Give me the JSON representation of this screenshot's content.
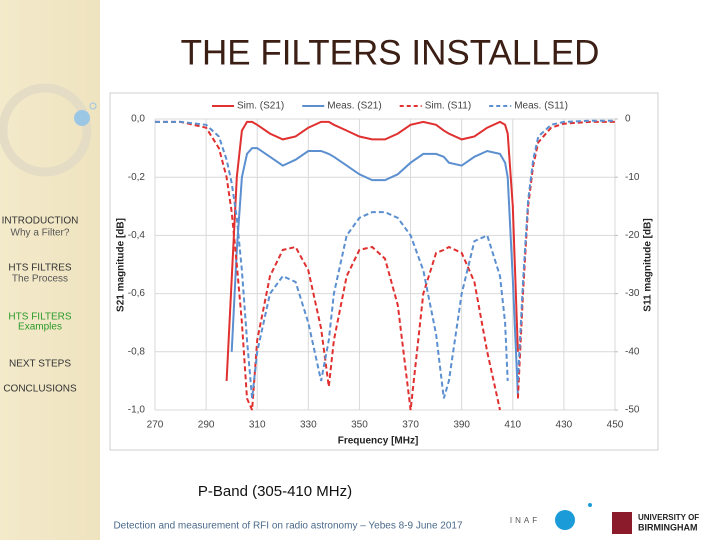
{
  "slide": {
    "title": "THE FILTERS INSTALLED",
    "nav": [
      {
        "title": "INTRODUCTION",
        "subtitle": "Why a Filter?"
      },
      {
        "title": "HTS FILTRES",
        "subtitle": "The Process"
      },
      {
        "title": "HTS FILTERS",
        "subtitle": "Examples"
      },
      {
        "title": "NEXT STEPS"
      },
      {
        "title": "CONCLUSIONS"
      }
    ],
    "caption": "P-Band (305-410 MHz)",
    "footer": "Detection and measurement of RFI on radio astronomy – Yebes 8-9 June 2017",
    "logo_left": "INAF",
    "logo_right": [
      "UNIVERSITY OF",
      "BIRMINGHAM"
    ]
  },
  "chart_data": {
    "type": "line",
    "x_label": "Frequency [MHz]",
    "y_label": "S21 magnitude [dB]",
    "y2_label": "S11 magnitude [dB]",
    "legend": "top",
    "grid": true,
    "x": [
      270,
      280,
      290,
      295,
      298,
      300,
      302,
      304,
      306,
      308,
      310,
      315,
      320,
      325,
      330,
      335,
      338,
      340,
      345,
      350,
      355,
      360,
      365,
      370,
      375,
      380,
      383,
      385,
      390,
      395,
      400,
      405,
      407,
      408,
      410,
      412,
      414,
      416,
      418,
      420,
      425,
      430,
      440,
      450
    ],
    "series": [
      {
        "name": "Sim. (S21)",
        "color": "#e03030",
        "linestyle": "solid",
        "values": [
          null,
          null,
          null,
          null,
          -0.9,
          -0.55,
          -0.2,
          -0.04,
          -0.01,
          -0.01,
          -0.02,
          -0.05,
          -0.07,
          -0.06,
          -0.03,
          -0.01,
          -0.01,
          -0.02,
          -0.04,
          -0.06,
          -0.07,
          -0.07,
          -0.05,
          -0.02,
          -0.01,
          -0.02,
          -0.04,
          -0.05,
          -0.07,
          -0.06,
          -0.03,
          -0.01,
          -0.02,
          -0.05,
          -0.3,
          -0.8,
          null,
          null,
          null,
          null,
          null,
          null,
          null,
          null
        ]
      },
      {
        "name": "Meas. (S21)",
        "color": "#5b8fd0",
        "linestyle": "solid",
        "values": [
          null,
          null,
          null,
          null,
          null,
          -0.8,
          -0.45,
          -0.2,
          -0.12,
          -0.1,
          -0.1,
          -0.13,
          -0.16,
          -0.14,
          -0.11,
          -0.11,
          -0.12,
          -0.13,
          -0.16,
          -0.19,
          -0.21,
          -0.21,
          -0.19,
          -0.15,
          -0.12,
          -0.12,
          -0.13,
          -0.15,
          -0.16,
          -0.13,
          -0.11,
          -0.12,
          -0.15,
          -0.2,
          -0.55,
          -0.95,
          null,
          null,
          null,
          null,
          null,
          null,
          null,
          null
        ]
      },
      {
        "name": "Sim. (S11)",
        "color": "#e03030",
        "linestyle": "dashed",
        "axis": "y2",
        "values": [
          -0.5,
          -0.5,
          -1.5,
          -5,
          -10,
          -16,
          -25,
          -35,
          -48,
          -50,
          -38,
          -27,
          -22.5,
          -22,
          -26,
          -36,
          -46,
          -38,
          -27,
          -22.5,
          -22,
          -24,
          -32,
          -50,
          -30,
          -23,
          -22.5,
          -22,
          -23,
          -28,
          -40,
          -50,
          null,
          null,
          null,
          -48,
          -30,
          -15,
          -8,
          -4,
          -1.5,
          -0.8,
          -0.5,
          -0.5
        ]
      },
      {
        "name": "Meas. (S11)",
        "color": "#5b8fd0",
        "linestyle": "dashed",
        "axis": "y2",
        "values": [
          -0.5,
          -0.5,
          -1,
          -3,
          -7,
          -11,
          -17,
          -26,
          -38,
          -48,
          -40,
          -30,
          -27,
          -28,
          -35,
          -45,
          -38,
          -30,
          -20,
          -17,
          -16,
          -16,
          -17,
          -20,
          -26,
          -37,
          -48,
          -45,
          -30,
          -21,
          -20,
          -27,
          -35,
          -45,
          null,
          -45,
          -28,
          -14,
          -7,
          -3,
          -1,
          -0.5,
          -0.3,
          -0.3
        ]
      }
    ],
    "xlim": [
      270,
      450
    ],
    "xticks": [
      270,
      290,
      310,
      330,
      350,
      370,
      390,
      410,
      430,
      450
    ],
    "ylim": [
      -1.0,
      0
    ],
    "yticks": [
      {
        "value": 0,
        "label": "0,0"
      },
      {
        "value": -0.2,
        "label": "-0,2"
      },
      {
        "value": -0.4,
        "label": "-0,4"
      },
      {
        "value": -0.6,
        "label": "-0,6"
      },
      {
        "value": -0.8,
        "label": "-0,8"
      },
      {
        "value": -1.0,
        "label": "-1,0"
      }
    ],
    "y2lim": [
      -50,
      0
    ],
    "y2ticks": [
      0,
      -10,
      -20,
      -30,
      -40,
      -50
    ]
  }
}
